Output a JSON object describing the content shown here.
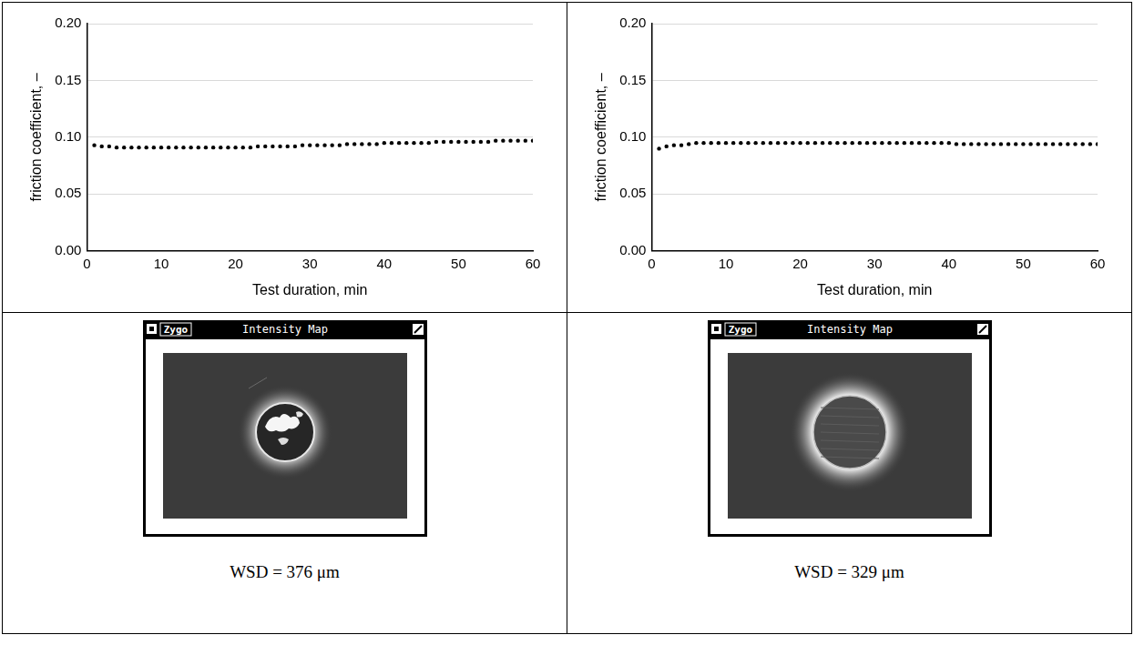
{
  "chart_data": [
    {
      "type": "scatter",
      "x_label": "Test duration, min",
      "y_label": "friction coefficient, –",
      "x": [
        1,
        2,
        3,
        4,
        5,
        6,
        7,
        8,
        9,
        10,
        11,
        12,
        13,
        14,
        15,
        16,
        17,
        18,
        19,
        20,
        21,
        22,
        23,
        24,
        25,
        26,
        27,
        28,
        29,
        30,
        31,
        32,
        33,
        34,
        35,
        36,
        37,
        38,
        39,
        40,
        41,
        42,
        43,
        44,
        45,
        46,
        47,
        48,
        49,
        50,
        51,
        52,
        53,
        54,
        55,
        56,
        57,
        58,
        59,
        60
      ],
      "values": [
        0.093,
        0.092,
        0.092,
        0.091,
        0.091,
        0.091,
        0.091,
        0.091,
        0.091,
        0.091,
        0.091,
        0.091,
        0.091,
        0.091,
        0.091,
        0.091,
        0.091,
        0.091,
        0.091,
        0.091,
        0.091,
        0.091,
        0.092,
        0.092,
        0.092,
        0.092,
        0.092,
        0.092,
        0.093,
        0.093,
        0.093,
        0.093,
        0.093,
        0.093,
        0.094,
        0.094,
        0.094,
        0.094,
        0.094,
        0.095,
        0.095,
        0.095,
        0.095,
        0.095,
        0.095,
        0.095,
        0.096,
        0.096,
        0.096,
        0.096,
        0.096,
        0.096,
        0.096,
        0.096,
        0.097,
        0.097,
        0.097,
        0.097,
        0.097,
        0.097
      ],
      "color": "#000000",
      "marker": "circle",
      "xlim": [
        0,
        60
      ],
      "xticks": [
        0,
        10,
        20,
        30,
        40,
        50,
        60
      ],
      "ylim": [
        0,
        0.2
      ],
      "yticks": [
        {
          "value": 0,
          "label": "0.00"
        },
        {
          "value": 0.05,
          "label": "0.05"
        },
        {
          "value": 0.1,
          "label": "0.10"
        },
        {
          "value": 0.15,
          "label": "0.15"
        },
        {
          "value": 0.2,
          "label": "0.20"
        }
      ],
      "grid": "y"
    },
    {
      "type": "scatter",
      "x_label": "Test duration, min",
      "y_label": "friction coefficient, –",
      "x": [
        1,
        2,
        3,
        4,
        5,
        6,
        7,
        8,
        9,
        10,
        11,
        12,
        13,
        14,
        15,
        16,
        17,
        18,
        19,
        20,
        21,
        22,
        23,
        24,
        25,
        26,
        27,
        28,
        29,
        30,
        31,
        32,
        33,
        34,
        35,
        36,
        37,
        38,
        39,
        40,
        41,
        42,
        43,
        44,
        45,
        46,
        47,
        48,
        49,
        50,
        51,
        52,
        53,
        54,
        55,
        56,
        57,
        58,
        59,
        60
      ],
      "values": [
        0.09,
        0.092,
        0.093,
        0.093,
        0.094,
        0.095,
        0.095,
        0.095,
        0.095,
        0.095,
        0.095,
        0.095,
        0.095,
        0.095,
        0.095,
        0.095,
        0.095,
        0.095,
        0.095,
        0.095,
        0.095,
        0.095,
        0.095,
        0.095,
        0.095,
        0.095,
        0.095,
        0.095,
        0.095,
        0.095,
        0.095,
        0.095,
        0.095,
        0.095,
        0.095,
        0.095,
        0.095,
        0.095,
        0.095,
        0.095,
        0.094,
        0.094,
        0.094,
        0.094,
        0.094,
        0.094,
        0.094,
        0.094,
        0.094,
        0.094,
        0.094,
        0.094,
        0.094,
        0.094,
        0.094,
        0.094,
        0.094,
        0.094,
        0.094,
        0.094
      ],
      "color": "#000000",
      "marker": "circle",
      "xlim": [
        0,
        60
      ],
      "xticks": [
        0,
        10,
        20,
        30,
        40,
        50,
        60
      ],
      "ylim": [
        0,
        0.2
      ],
      "yticks": [
        {
          "value": 0,
          "label": "0.00"
        },
        {
          "value": 0.05,
          "label": "0.05"
        },
        {
          "value": 0.1,
          "label": "0.10"
        },
        {
          "value": 0.15,
          "label": "0.15"
        },
        {
          "value": 0.2,
          "label": "0.20"
        }
      ],
      "grid": "y"
    }
  ],
  "images": [
    {
      "brand": "Zygo",
      "window_title": "Intensity Map",
      "caption": "WSD = 376 μm"
    },
    {
      "brand": "Zygo",
      "window_title": "Intensity Map",
      "caption": "WSD = 329 μm"
    }
  ]
}
